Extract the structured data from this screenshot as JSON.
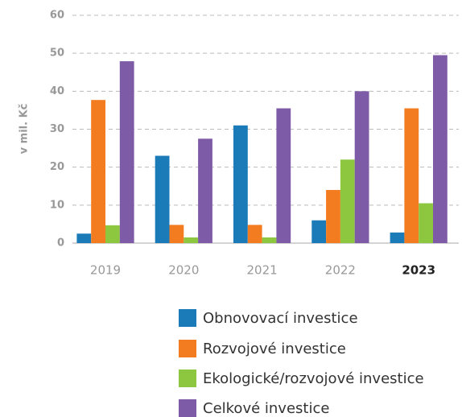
{
  "chart_data": {
    "type": "bar",
    "y_label": "v mil. Kč",
    "categories": [
      "2019",
      "2020",
      "2021",
      "2022",
      "2023"
    ],
    "bold_categories": [
      4
    ],
    "series": [
      {
        "name": "Obnovovací investice",
        "color": "#1b7bb8",
        "values": [
          2.5,
          23,
          31,
          6,
          2.8
        ]
      },
      {
        "name": "Rozvojové investice",
        "color": "#f47c20",
        "values": [
          37.7,
          4.8,
          4.8,
          14,
          35.5
        ]
      },
      {
        "name": "Ekologické/rozvojové investice",
        "color": "#8dc63f",
        "values": [
          4.7,
          1.5,
          1.5,
          22,
          10.5
        ]
      },
      {
        "name": "Celkové investice",
        "color": "#7d5ba6",
        "values": [
          47.9,
          27.5,
          35.5,
          40,
          49.5
        ]
      }
    ],
    "ylim": [
      0,
      60
    ],
    "yticks": [
      0,
      10,
      20,
      30,
      40,
      50,
      60
    ],
    "grid": true
  }
}
